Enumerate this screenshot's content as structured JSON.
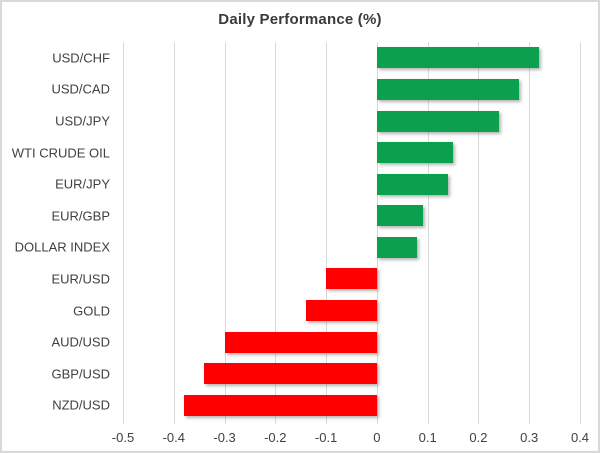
{
  "chart_data": {
    "type": "bar",
    "orientation": "horizontal",
    "title": "Daily Performance (%)",
    "categories": [
      "USD/CHF",
      "USD/CAD",
      "USD/JPY",
      "WTI CRUDE OIL",
      "EUR/JPY",
      "EUR/GBP",
      "DOLLAR INDEX",
      "EUR/USD",
      "GOLD",
      "AUD/USD",
      "GBP/USD",
      "NZD/USD"
    ],
    "values": [
      0.32,
      0.28,
      0.24,
      0.15,
      0.14,
      0.09,
      0.08,
      -0.1,
      -0.14,
      -0.3,
      -0.34,
      -0.38
    ],
    "xlim": [
      -0.5,
      0.4
    ],
    "xticks": [
      -0.5,
      -0.4,
      -0.3,
      -0.2,
      -0.1,
      0,
      0.1,
      0.2,
      0.3,
      0.4
    ],
    "xtick_labels": [
      "-0.5",
      "-0.4",
      "-0.3",
      "-0.2",
      "-0.1",
      "0",
      "0.1",
      "0.2",
      "0.3",
      "0.4"
    ],
    "grid": true,
    "legend": "none",
    "xlabel": "",
    "ylabel": "",
    "colors": {
      "positive": "#0ba04e",
      "negative": "#fe0000",
      "gridline": "#d9d9d9",
      "axis_text": "#404040",
      "title_text": "#3a3a3a",
      "frame_border": "#d9d9d9",
      "background": "#ffffff"
    }
  }
}
